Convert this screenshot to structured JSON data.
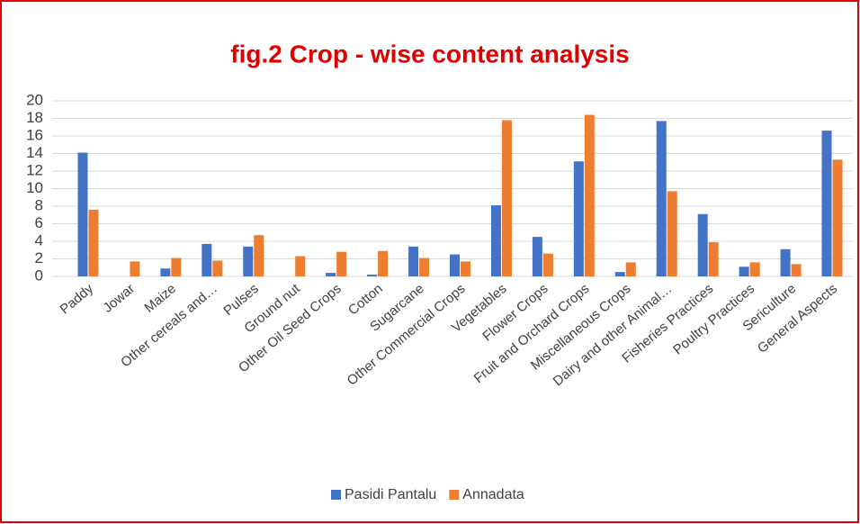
{
  "chart_data": {
    "type": "bar",
    "title": "fig.2 Crop - wise content analysis",
    "categories": [
      "Paddy",
      "Jowar",
      "Maize",
      "Other cereals and…",
      "Pulses",
      "Ground nut",
      "Other Oil Seed Crops",
      "Cotton",
      "Sugarcane",
      "Other Commercial Crops",
      "Vegetables",
      "Flower Crops",
      "Fruit and Orchard Crops",
      "Miscellaneous Crops",
      "Dairy and other Animal…",
      "Fisheries Practices",
      "Poultry Practices",
      "Sericulture",
      "General Aspects"
    ],
    "series": [
      {
        "name": "Pasidi Pantalu",
        "color": "#4472c4",
        "values": [
          14.1,
          0,
          0.9,
          3.7,
          3.4,
          0,
          0.4,
          0.2,
          3.4,
          2.5,
          8.1,
          4.5,
          13.1,
          0.5,
          17.7,
          7.1,
          1.1,
          3.1,
          16.6
        ]
      },
      {
        "name": "Annadata",
        "color": "#ed7d31",
        "values": [
          7.6,
          1.7,
          2.1,
          1.8,
          4.7,
          2.3,
          2.8,
          2.9,
          2.1,
          1.7,
          17.8,
          2.6,
          18.4,
          1.6,
          9.7,
          3.9,
          1.6,
          1.4,
          13.3
        ]
      }
    ],
    "ylim": [
      0,
      20
    ],
    "yticks": [
      0,
      2,
      4,
      6,
      8,
      10,
      12,
      14,
      16,
      18,
      20
    ],
    "grid": true,
    "legend": "bottom"
  }
}
